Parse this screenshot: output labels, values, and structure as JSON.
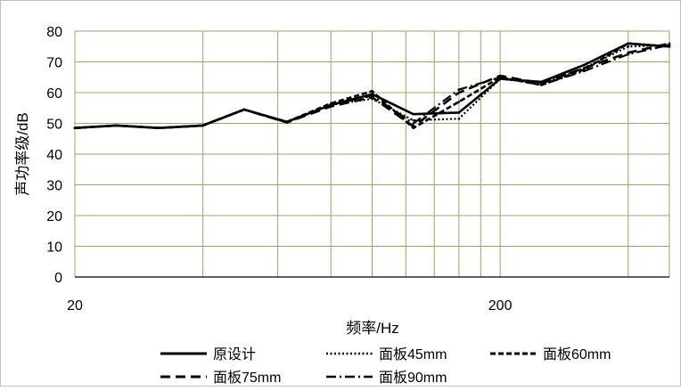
{
  "chart_data": {
    "type": "line",
    "title": "",
    "xlabel": "频率/Hz",
    "ylabel": "声功率级/dB",
    "x_scale": "log",
    "xlim": [
      20,
      500
    ],
    "ylim": [
      0,
      80
    ],
    "x_ticks": [
      20,
      200
    ],
    "y_ticks": [
      0,
      10,
      20,
      30,
      40,
      50,
      60,
      70,
      80
    ],
    "grid": true,
    "x_gridlines": [
      40,
      60,
      80,
      100,
      120,
      140,
      160,
      180,
      200,
      400
    ],
    "legend_position": "bottom",
    "x": [
      20,
      25,
      31.5,
      40,
      50,
      63,
      80,
      100,
      125,
      160,
      200,
      250,
      315,
      400,
      500
    ],
    "series": [
      {
        "name": "原设计",
        "style": "solid",
        "values": [
          48.5,
          49.3,
          48.5,
          49.3,
          54.5,
          50.5,
          56,
          59.5,
          53,
          53.5,
          64.5,
          63.5,
          69,
          76,
          75
        ]
      },
      {
        "name": "面板45mm",
        "style": "dotted",
        "values": [
          48.5,
          49.3,
          48.5,
          49.3,
          54.5,
          50.5,
          56,
          58,
          51,
          51.5,
          64.5,
          63,
          68,
          75,
          75.5
        ]
      },
      {
        "name": "面板60mm",
        "style": "dashed",
        "values": [
          48.5,
          49.3,
          48.5,
          49.3,
          54.5,
          50.5,
          56.5,
          60.5,
          48.5,
          57,
          65,
          62.5,
          67.5,
          76,
          75
        ]
      },
      {
        "name": "面板75mm",
        "style": "longdash",
        "values": [
          48.5,
          49.3,
          48.5,
          49.3,
          54.5,
          50.3,
          55.5,
          58.5,
          49,
          60,
          65.5,
          63,
          68,
          73,
          76
        ]
      },
      {
        "name": "面板90mm",
        "style": "dashdot",
        "values": [
          48.5,
          49.3,
          48.5,
          49.3,
          54.5,
          50.3,
          56,
          59,
          50,
          61,
          65,
          62.5,
          67,
          72.5,
          75.5
        ]
      }
    ]
  }
}
